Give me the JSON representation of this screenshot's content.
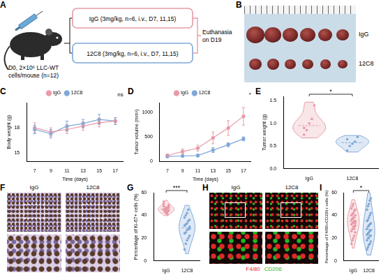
{
  "panels": [
    {
      "label": "A",
      "start": [
        "D0, 2×10⁶ LLC-WT",
        "cells/mouse (n=12)"
      ],
      "groups": [
        {
          "text": "IgG (3mg/kg, n=6, i.v., D7, 11,15)",
          "color": "#e89aa6"
        },
        {
          "text": "12C8 (3mg/kg, n=6, i.v., D7, 11,15)",
          "color": "#7fa8d8"
        }
      ],
      "end": [
        "Euthanasia",
        "on D19"
      ]
    },
    {
      "label": "B",
      "rows": [
        "IgG",
        "12C8"
      ]
    },
    {
      "label": "F",
      "columns": [
        "IgG",
        "12C8"
      ]
    },
    {
      "label": "H",
      "columns": [
        "IgG",
        "12C8"
      ],
      "stains": [
        {
          "name": "F4/80",
          "color": "#e02828"
        },
        {
          "name": "CD206",
          "color": "#22b822"
        }
      ]
    }
  ],
  "chart_data": [
    {
      "panel": "C",
      "type": "line",
      "x_label": "Time (days)",
      "y_label": "Body weight (g)",
      "x": [
        7,
        9,
        11,
        13,
        15,
        17
      ],
      "xlim": [
        6,
        18
      ],
      "xticks": [
        7,
        9,
        11,
        13,
        15,
        17
      ],
      "ylim": [
        14,
        21
      ],
      "yticks": [
        15,
        18
      ],
      "grid": false,
      "legend": "top",
      "annotation": "ns",
      "series": [
        {
          "name": "IgG",
          "color": "#e89aa6",
          "marker": "circle",
          "line_style": "solid",
          "values": [
            18,
            17.5,
            17.8,
            18.2,
            18.6,
            18.8
          ],
          "errors": [
            0.6,
            0.5,
            0.5,
            0.5,
            0.5,
            0.4
          ]
        },
        {
          "name": "12C8",
          "color": "#7fa8d8",
          "marker": "circle",
          "line_style": "solid",
          "values": [
            17.8,
            17.3,
            18.2,
            18.5,
            19.0,
            18.8
          ],
          "errors": [
            0.5,
            0.5,
            0.6,
            0.5,
            0.6,
            0.4
          ]
        }
      ]
    },
    {
      "panel": "D",
      "type": "line",
      "x_label": "Time (days)",
      "y_label": "Tumor volume (mm³)",
      "x": [
        7,
        9,
        11,
        13,
        15,
        17
      ],
      "xlim": [
        6,
        18
      ],
      "xticks": [
        7,
        9,
        11,
        13,
        15,
        17
      ],
      "ylim": [
        0,
        1200
      ],
      "yticks": [
        0,
        500,
        1000
      ],
      "grid": false,
      "legend": "top",
      "annotation": "*",
      "series": [
        {
          "name": "IgG",
          "color": "#e89aa6",
          "marker": "circle",
          "line_style": "solid",
          "values": [
            120,
            200,
            270,
            480,
            680,
            920
          ],
          "errors": [
            30,
            50,
            60,
            120,
            150,
            180
          ]
        },
        {
          "name": "12C8",
          "color": "#7fa8d8",
          "marker": "circle",
          "line_style": "solid",
          "values": [
            100,
            110,
            120,
            230,
            340,
            460
          ],
          "errors": [
            20,
            20,
            30,
            50,
            40,
            40
          ]
        }
      ]
    },
    {
      "panel": "E",
      "type": "violin",
      "y_label": "Tumor weight (g)",
      "ylim": [
        0,
        1.6
      ],
      "yticks": [
        {
          "value": 0,
          "label": "0.0"
        },
        0.5,
        {
          "value": 1,
          "label": "1.0"
        },
        1.5
      ],
      "grid": false,
      "annotation": "*",
      "series": [
        {
          "name": "IgG",
          "color": "#e89aa6",
          "values": [
            0.75,
            0.85,
            1.0,
            1.1,
            1.4,
            0.9
          ]
        },
        {
          "name": "12C8",
          "color": "#7fa8d8",
          "values": [
            0.4,
            0.5,
            0.55,
            0.6,
            0.7,
            0.65
          ]
        }
      ]
    },
    {
      "panel": "G",
      "type": "violin",
      "y_label": "Percentage of Ki-67+ cells (%)",
      "ylim": [
        0,
        60
      ],
      "yticks": [
        0,
        20,
        40,
        60
      ],
      "grid": false,
      "annotation": "***",
      "series": [
        {
          "name": "IgG",
          "color": "#e89aa6",
          "values": [
            48,
            46,
            45,
            44,
            47,
            50,
            43,
            42,
            46,
            49,
            45,
            44,
            47,
            41,
            48,
            52,
            45,
            46,
            43,
            44
          ]
        },
        {
          "name": "12C8",
          "color": "#7fa8d8",
          "values": [
            10,
            15,
            18,
            20,
            22,
            24,
            25,
            27,
            28,
            30,
            31,
            32,
            33,
            35,
            36,
            38,
            40,
            42,
            45,
            28
          ]
        }
      ]
    },
    {
      "panel": "I",
      "type": "violin",
      "y_label": "Percentage of F4/80+CD206+ cells (%)",
      "ylim": [
        0,
        60
      ],
      "yticks": [
        0,
        20,
        40,
        60
      ],
      "grid": false,
      "annotation": "*",
      "series": [
        {
          "name": "IgG",
          "color": "#e89aa6",
          "values": [
            15,
            18,
            20,
            22,
            25,
            26,
            28,
            30,
            30,
            31,
            32,
            33,
            34,
            35,
            35,
            36,
            37,
            38,
            38,
            40,
            40,
            41,
            42,
            44,
            45,
            46,
            48,
            50,
            28,
            33
          ]
        },
        {
          "name": "12C8",
          "color": "#7fa8d8",
          "values": [
            10,
            12,
            14,
            15,
            17,
            18,
            20,
            20,
            22,
            22,
            23,
            24,
            25,
            26,
            27,
            28,
            30,
            31,
            32,
            33,
            35,
            36,
            38,
            40,
            42,
            45,
            48,
            50,
            53,
            55
          ]
        }
      ]
    }
  ]
}
